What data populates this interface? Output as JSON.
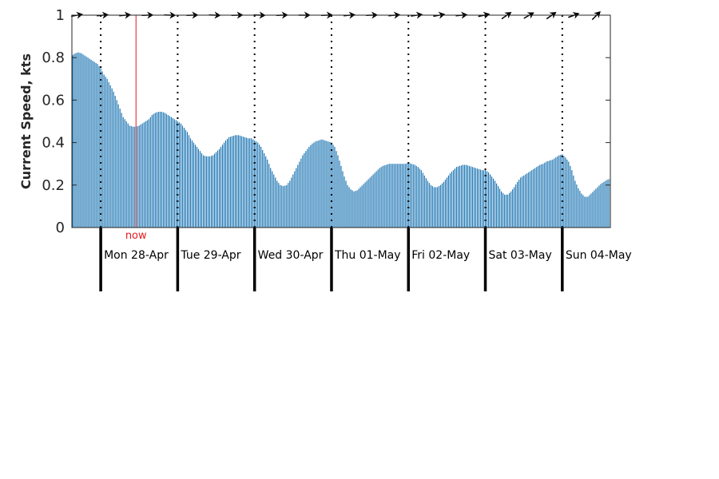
{
  "chart_data": {
    "type": "bar",
    "title": "",
    "ylabel": "Current Speed, kts",
    "ylim": [
      0,
      1
    ],
    "yticks": [
      "0",
      "0.2",
      "0.4",
      "0.6",
      "0.8",
      "1"
    ],
    "x_start_hours": 0,
    "x_end_hours": 168,
    "bar_color": "#0a6aad",
    "now_color": "#e41a1c",
    "now_label": "now",
    "now_hours": 20,
    "day_labels": [
      "Mon 28-Apr",
      "Tue 29-Apr",
      "Wed 30-Apr",
      "Thu 01-May",
      "Fri 02-May",
      "Sat 03-May",
      "Sun 04-May"
    ],
    "midnights_hours": [
      9,
      33,
      57,
      81,
      105,
      129,
      153
    ],
    "speed_samples": [
      [
        0,
        0.81
      ],
      [
        1,
        0.82
      ],
      [
        2,
        0.825
      ],
      [
        3,
        0.82
      ],
      [
        4,
        0.81
      ],
      [
        5,
        0.8
      ],
      [
        6,
        0.79
      ],
      [
        7,
        0.78
      ],
      [
        8,
        0.77
      ],
      [
        9,
        0.75
      ],
      [
        10,
        0.72
      ],
      [
        11,
        0.7
      ],
      [
        12,
        0.67
      ],
      [
        13,
        0.64
      ],
      [
        14,
        0.6
      ],
      [
        15,
        0.56
      ],
      [
        16,
        0.52
      ],
      [
        17,
        0.5
      ],
      [
        18,
        0.48
      ],
      [
        19,
        0.475
      ],
      [
        20,
        0.475
      ],
      [
        21,
        0.48
      ],
      [
        22,
        0.49
      ],
      [
        23,
        0.5
      ],
      [
        24,
        0.51
      ],
      [
        25,
        0.53
      ],
      [
        26,
        0.54
      ],
      [
        27,
        0.545
      ],
      [
        28,
        0.545
      ],
      [
        29,
        0.54
      ],
      [
        30,
        0.53
      ],
      [
        31,
        0.52
      ],
      [
        32,
        0.51
      ],
      [
        33,
        0.5
      ],
      [
        34,
        0.49
      ],
      [
        35,
        0.47
      ],
      [
        36,
        0.45
      ],
      [
        37,
        0.42
      ],
      [
        38,
        0.4
      ],
      [
        39,
        0.38
      ],
      [
        40,
        0.36
      ],
      [
        41,
        0.34
      ],
      [
        42,
        0.335
      ],
      [
        43,
        0.335
      ],
      [
        44,
        0.34
      ],
      [
        45,
        0.355
      ],
      [
        46,
        0.37
      ],
      [
        47,
        0.39
      ],
      [
        48,
        0.41
      ],
      [
        49,
        0.425
      ],
      [
        50,
        0.43
      ],
      [
        51,
        0.435
      ],
      [
        52,
        0.435
      ],
      [
        53,
        0.43
      ],
      [
        54,
        0.425
      ],
      [
        55,
        0.42
      ],
      [
        56,
        0.42
      ],
      [
        57,
        0.41
      ],
      [
        58,
        0.4
      ],
      [
        59,
        0.38
      ],
      [
        60,
        0.35
      ],
      [
        61,
        0.32
      ],
      [
        62,
        0.28
      ],
      [
        63,
        0.25
      ],
      [
        64,
        0.22
      ],
      [
        65,
        0.2
      ],
      [
        66,
        0.195
      ],
      [
        67,
        0.2
      ],
      [
        68,
        0.22
      ],
      [
        69,
        0.25
      ],
      [
        70,
        0.28
      ],
      [
        71,
        0.31
      ],
      [
        72,
        0.34
      ],
      [
        73,
        0.36
      ],
      [
        74,
        0.38
      ],
      [
        75,
        0.395
      ],
      [
        76,
        0.405
      ],
      [
        77,
        0.41
      ],
      [
        78,
        0.415
      ],
      [
        79,
        0.41
      ],
      [
        80,
        0.405
      ],
      [
        81,
        0.4
      ],
      [
        82,
        0.38
      ],
      [
        83,
        0.34
      ],
      [
        84,
        0.29
      ],
      [
        85,
        0.24
      ],
      [
        86,
        0.2
      ],
      [
        87,
        0.18
      ],
      [
        88,
        0.17
      ],
      [
        89,
        0.175
      ],
      [
        90,
        0.19
      ],
      [
        91,
        0.205
      ],
      [
        92,
        0.22
      ],
      [
        93,
        0.235
      ],
      [
        94,
        0.25
      ],
      [
        95,
        0.265
      ],
      [
        96,
        0.28
      ],
      [
        97,
        0.29
      ],
      [
        98,
        0.295
      ],
      [
        99,
        0.3
      ],
      [
        100,
        0.3
      ],
      [
        101,
        0.3
      ],
      [
        102,
        0.3
      ],
      [
        103,
        0.3
      ],
      [
        104,
        0.3
      ],
      [
        105,
        0.305
      ],
      [
        106,
        0.3
      ],
      [
        107,
        0.295
      ],
      [
        108,
        0.285
      ],
      [
        109,
        0.27
      ],
      [
        110,
        0.245
      ],
      [
        111,
        0.22
      ],
      [
        112,
        0.2
      ],
      [
        113,
        0.19
      ],
      [
        114,
        0.19
      ],
      [
        115,
        0.2
      ],
      [
        116,
        0.215
      ],
      [
        117,
        0.235
      ],
      [
        118,
        0.255
      ],
      [
        119,
        0.27
      ],
      [
        120,
        0.285
      ],
      [
        121,
        0.29
      ],
      [
        122,
        0.295
      ],
      [
        123,
        0.295
      ],
      [
        124,
        0.29
      ],
      [
        125,
        0.285
      ],
      [
        126,
        0.28
      ],
      [
        127,
        0.275
      ],
      [
        128,
        0.27
      ],
      [
        129,
        0.27
      ],
      [
        130,
        0.26
      ],
      [
        131,
        0.24
      ],
      [
        132,
        0.22
      ],
      [
        133,
        0.195
      ],
      [
        134,
        0.17
      ],
      [
        135,
        0.155
      ],
      [
        136,
        0.155
      ],
      [
        137,
        0.17
      ],
      [
        138,
        0.19
      ],
      [
        139,
        0.215
      ],
      [
        140,
        0.235
      ],
      [
        141,
        0.245
      ],
      [
        142,
        0.255
      ],
      [
        143,
        0.265
      ],
      [
        144,
        0.275
      ],
      [
        145,
        0.285
      ],
      [
        146,
        0.295
      ],
      [
        147,
        0.3
      ],
      [
        148,
        0.31
      ],
      [
        149,
        0.315
      ],
      [
        150,
        0.32
      ],
      [
        151,
        0.33
      ],
      [
        152,
        0.34
      ],
      [
        153,
        0.345
      ],
      [
        154,
        0.33
      ],
      [
        155,
        0.31
      ],
      [
        156,
        0.27
      ],
      [
        157,
        0.22
      ],
      [
        158,
        0.185
      ],
      [
        159,
        0.16
      ],
      [
        160,
        0.145
      ],
      [
        161,
        0.145
      ],
      [
        162,
        0.16
      ],
      [
        163,
        0.175
      ],
      [
        164,
        0.19
      ],
      [
        165,
        0.205
      ],
      [
        166,
        0.215
      ],
      [
        167,
        0.225
      ],
      [
        168,
        0.23
      ]
    ],
    "direction_arrows": [
      {
        "hours": 0,
        "bearing_deg": 80
      },
      {
        "hours": 8,
        "bearing_deg": 85
      },
      {
        "hours": 15,
        "bearing_deg": 85
      },
      {
        "hours": 22,
        "bearing_deg": 88
      },
      {
        "hours": 29,
        "bearing_deg": 92
      },
      {
        "hours": 36,
        "bearing_deg": 88
      },
      {
        "hours": 43,
        "bearing_deg": 92
      },
      {
        "hours": 50,
        "bearing_deg": 88
      },
      {
        "hours": 57,
        "bearing_deg": 92
      },
      {
        "hours": 64,
        "bearing_deg": 88
      },
      {
        "hours": 71,
        "bearing_deg": 90
      },
      {
        "hours": 78,
        "bearing_deg": 88
      },
      {
        "hours": 85,
        "bearing_deg": 85
      },
      {
        "hours": 92,
        "bearing_deg": 88
      },
      {
        "hours": 99,
        "bearing_deg": 85
      },
      {
        "hours": 106,
        "bearing_deg": 82
      },
      {
        "hours": 113,
        "bearing_deg": 80
      },
      {
        "hours": 120,
        "bearing_deg": 85
      },
      {
        "hours": 127,
        "bearing_deg": 78
      },
      {
        "hours": 134,
        "bearing_deg": 55
      },
      {
        "hours": 141,
        "bearing_deg": 60
      },
      {
        "hours": 148,
        "bearing_deg": 55
      },
      {
        "hours": 155,
        "bearing_deg": 70
      },
      {
        "hours": 162,
        "bearing_deg": 45
      }
    ],
    "grid": false,
    "legend": "none"
  }
}
